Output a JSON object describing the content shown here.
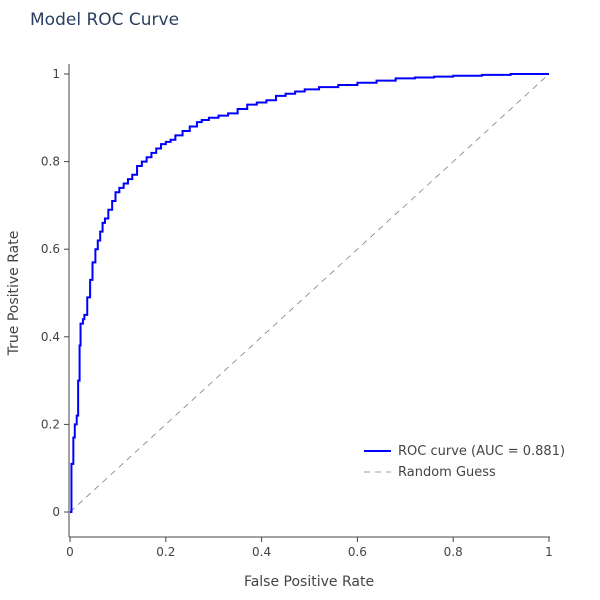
{
  "chart_data": {
    "type": "line",
    "title": "Model ROC Curve",
    "xlabel": "False Positive Rate",
    "ylabel": "True Positive Rate",
    "xlim": [
      0,
      1
    ],
    "ylim": [
      0,
      1
    ],
    "x_ticks": [
      "0",
      "0.2",
      "0.4",
      "0.6",
      "0.8",
      "1"
    ],
    "y_ticks": [
      "0",
      "0.2",
      "0.4",
      "0.6",
      "0.8",
      "1"
    ],
    "grid": false,
    "legend_position": "bottom-right",
    "series": [
      {
        "name": "ROC curve (AUC = 0.881)",
        "color": "#0000ff",
        "dash": "solid",
        "x": [
          0,
          0.003,
          0.003,
          0.007,
          0.007,
          0.01,
          0.01,
          0.014,
          0.014,
          0.017,
          0.017,
          0.02,
          0.02,
          0.022,
          0.022,
          0.027,
          0.027,
          0.03,
          0.03,
          0.036,
          0.036,
          0.042,
          0.042,
          0.047,
          0.047,
          0.053,
          0.053,
          0.058,
          0.058,
          0.063,
          0.063,
          0.068,
          0.068,
          0.073,
          0.073,
          0.08,
          0.08,
          0.088,
          0.088,
          0.095,
          0.095,
          0.103,
          0.103,
          0.112,
          0.112,
          0.121,
          0.121,
          0.13,
          0.13,
          0.14,
          0.14,
          0.15,
          0.15,
          0.16,
          0.16,
          0.17,
          0.17,
          0.18,
          0.18,
          0.19,
          0.19,
          0.2,
          0.2,
          0.21,
          0.21,
          0.22,
          0.22,
          0.235,
          0.235,
          0.25,
          0.25,
          0.265,
          0.265,
          0.275,
          0.275,
          0.29,
          0.29,
          0.31,
          0.31,
          0.33,
          0.33,
          0.35,
          0.35,
          0.37,
          0.37,
          0.39,
          0.39,
          0.41,
          0.41,
          0.43,
          0.43,
          0.45,
          0.45,
          0.47,
          0.47,
          0.49,
          0.49,
          0.52,
          0.52,
          0.56,
          0.56,
          0.6,
          0.6,
          0.64,
          0.64,
          0.68,
          0.68,
          0.72,
          0.72,
          0.76,
          0.76,
          0.8,
          0.8,
          0.86,
          0.86,
          0.92,
          0.92,
          1.0
        ],
        "y": [
          0,
          0,
          0.11,
          0.11,
          0.17,
          0.17,
          0.2,
          0.2,
          0.22,
          0.22,
          0.3,
          0.3,
          0.38,
          0.38,
          0.43,
          0.43,
          0.44,
          0.44,
          0.45,
          0.45,
          0.49,
          0.49,
          0.53,
          0.53,
          0.57,
          0.57,
          0.6,
          0.6,
          0.62,
          0.62,
          0.64,
          0.64,
          0.66,
          0.66,
          0.67,
          0.67,
          0.69,
          0.69,
          0.71,
          0.71,
          0.73,
          0.73,
          0.74,
          0.74,
          0.75,
          0.75,
          0.76,
          0.76,
          0.77,
          0.77,
          0.79,
          0.79,
          0.8,
          0.8,
          0.81,
          0.81,
          0.82,
          0.82,
          0.83,
          0.83,
          0.84,
          0.84,
          0.845,
          0.845,
          0.85,
          0.85,
          0.86,
          0.86,
          0.87,
          0.87,
          0.88,
          0.88,
          0.89,
          0.89,
          0.895,
          0.895,
          0.9,
          0.9,
          0.905,
          0.905,
          0.91,
          0.91,
          0.92,
          0.92,
          0.93,
          0.93,
          0.935,
          0.935,
          0.94,
          0.94,
          0.95,
          0.95,
          0.955,
          0.955,
          0.96,
          0.96,
          0.965,
          0.965,
          0.97,
          0.97,
          0.975,
          0.975,
          0.98,
          0.98,
          0.985,
          0.985,
          0.99,
          0.99,
          0.992,
          0.992,
          0.994,
          0.994,
          0.996,
          0.996,
          0.998,
          0.998,
          1.0,
          1.0
        ]
      },
      {
        "name": "Random Guess",
        "color": "#808080",
        "dash": "dashed",
        "x": [
          0,
          1
        ],
        "y": [
          0,
          1
        ]
      }
    ]
  }
}
